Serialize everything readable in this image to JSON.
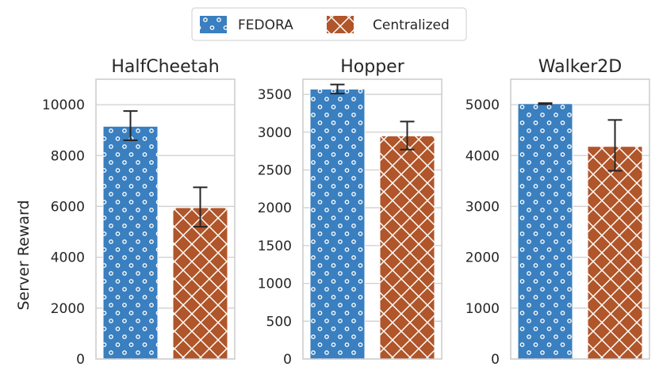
{
  "chart_data": {
    "type": "bar",
    "ylabel": "Server Reward",
    "legend": {
      "position": "top-center",
      "entries": [
        {
          "name": "FEDORA",
          "color": "#3a7fbf",
          "hatch": "dots"
        },
        {
          "name": "Centralized",
          "color": "#b0562a",
          "hatch": "crosshatch"
        }
      ]
    },
    "panels": [
      {
        "title": "HalfCheetah",
        "ylim": [
          0,
          11000
        ],
        "yticks": [
          0,
          2000,
          4000,
          6000,
          8000,
          10000
        ],
        "ytick_labels": [
          "0",
          "2000",
          "4000",
          "6000",
          "8000",
          "10000"
        ],
        "series": [
          {
            "name": "FEDORA",
            "value": 9150,
            "err_low": 8600,
            "err_high": 9750
          },
          {
            "name": "Centralized",
            "value": 5950,
            "err_low": 5200,
            "err_high": 6750
          }
        ]
      },
      {
        "title": "Hopper",
        "ylim": [
          0,
          3700
        ],
        "yticks": [
          0,
          500,
          1000,
          1500,
          2000,
          2500,
          3000,
          3500
        ],
        "ytick_labels": [
          "0",
          "500",
          "1000",
          "1500",
          "2000",
          "2500",
          "3000",
          "3500"
        ],
        "series": [
          {
            "name": "FEDORA",
            "value": 3570,
            "err_low": 3510,
            "err_high": 3630
          },
          {
            "name": "Centralized",
            "value": 2950,
            "err_low": 2770,
            "err_high": 3140
          }
        ]
      },
      {
        "title": "Walker2D",
        "ylim": [
          0,
          5500
        ],
        "yticks": [
          0,
          1000,
          2000,
          3000,
          4000,
          5000
        ],
        "ytick_labels": [
          "0",
          "1000",
          "2000",
          "3000",
          "4000",
          "5000"
        ],
        "series": [
          {
            "name": "FEDORA",
            "value": 5020,
            "err_low": 5010,
            "err_high": 5030
          },
          {
            "name": "Centralized",
            "value": 4180,
            "err_low": 3700,
            "err_high": 4700
          }
        ]
      }
    ]
  }
}
